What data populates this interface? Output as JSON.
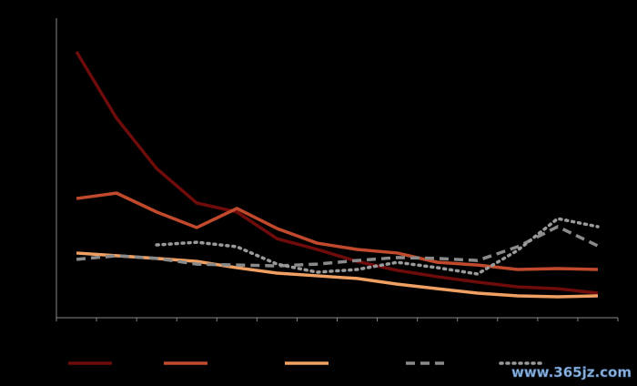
{
  "chart_data": {
    "type": "line",
    "categories": [
      null,
      null,
      null,
      null,
      null,
      null,
      null,
      null,
      null,
      null,
      null,
      null,
      null,
      null
    ],
    "ylim": [
      0,
      100
    ],
    "series": [
      {
        "color": "#6e0b0b",
        "dash": "solid",
        "values": [
          88.8,
          66.6,
          49.8,
          38.3,
          35.3,
          26.4,
          22.8,
          18.8,
          15.8,
          13.7,
          11.9,
          10.3,
          9.7,
          8.2
        ]
      },
      {
        "color": "#c24a2c",
        "dash": "solid",
        "values": [
          39.8,
          41.6,
          35.3,
          30.1,
          36.5,
          29.8,
          24.9,
          22.8,
          21.6,
          18.5,
          17.6,
          16.1,
          16.4,
          16.1
        ]
      },
      {
        "color": "#efa062",
        "dash": "solid",
        "values": [
          21.6,
          20.7,
          19.8,
          18.8,
          16.7,
          14.9,
          14.0,
          13.1,
          11.2,
          9.7,
          8.2,
          7.3,
          7.0,
          7.3
        ]
      },
      {
        "color": "#8a8a8a",
        "dash": "dashed",
        "values": [
          19.5,
          20.7,
          19.8,
          17.9,
          17.6,
          17.3,
          17.9,
          19.1,
          20.1,
          19.8,
          19.1,
          23.7,
          30.4,
          24.0
        ]
      },
      {
        "color": "#9a9a9a",
        "dash": "dotted",
        "values": [
          null,
          null,
          24.3,
          25.2,
          23.7,
          17.9,
          15.2,
          16.1,
          18.5,
          16.7,
          14.6,
          22.5,
          33.1,
          30.4
        ]
      }
    ]
  },
  "watermark": "www.365jz.com"
}
